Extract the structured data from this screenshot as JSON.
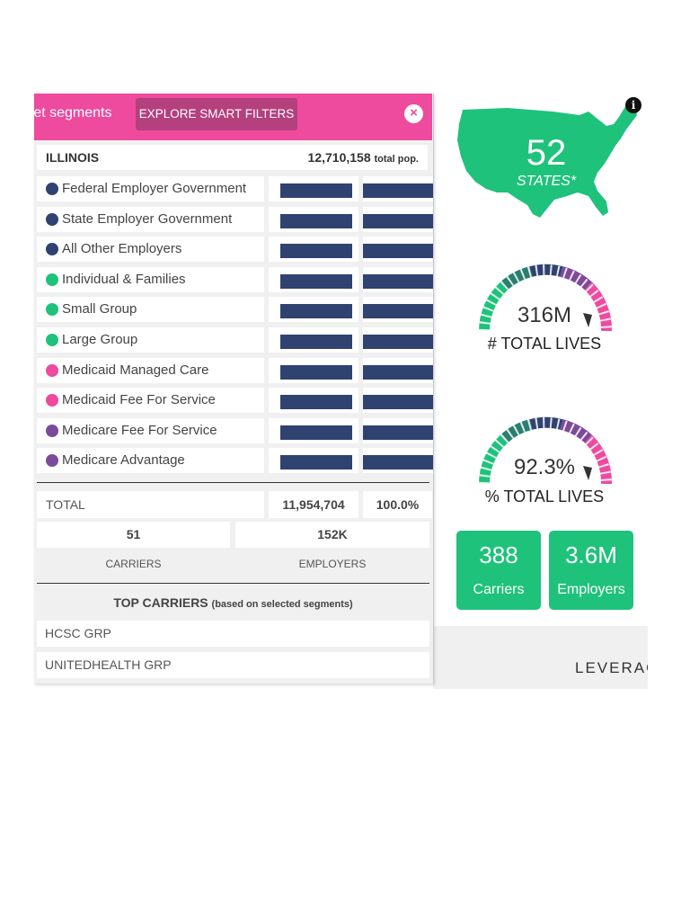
{
  "popup": {
    "title": "rket segments",
    "smart_filters_label": "EXPLORE SMART FILTERS",
    "close_label": "×",
    "state": {
      "name": "ILLINOIS",
      "population": "12,710,158",
      "population_suffix": "total pop."
    },
    "segments": [
      {
        "label": "Federal Employer Government",
        "color": "#304270"
      },
      {
        "label": "State Employer Government",
        "color": "#304270"
      },
      {
        "label": "All Other Employers",
        "color": "#304270"
      },
      {
        "label": "Individual & Families",
        "color": "#1fc27b"
      },
      {
        "label": "Small Group",
        "color": "#1fc27b"
      },
      {
        "label": "Large Group",
        "color": "#1fc27b"
      },
      {
        "label": "Medicaid Managed Care",
        "color": "#ee4a9e"
      },
      {
        "label": "Medicaid Fee For Service",
        "color": "#ee4a9e"
      },
      {
        "label": "Medicare Fee For Service",
        "color": "#7d4a9a"
      },
      {
        "label": "Medicare Advantage",
        "color": "#7d4a9a"
      }
    ],
    "total": {
      "label": "TOTAL",
      "value": "11,954,704",
      "percent": "100.0%"
    },
    "carriers": {
      "value": "51",
      "label": "CARRIERS"
    },
    "employers": {
      "value": "152K",
      "label": "EMPLOYERS"
    },
    "top_carriers": {
      "title": "TOP CARRIERS",
      "subtitle": "(based on selected segments)",
      "items": [
        "HCSC GRP",
        "UNITEDHEALTH GRP"
      ]
    }
  },
  "dashboard": {
    "states": {
      "value": "52",
      "label": "STATES*"
    },
    "info_icon": "i",
    "total_lives": {
      "value": "316M",
      "label": "# TOTAL LIVES"
    },
    "pct_total_lives": {
      "value": "92.3%",
      "label": "% TOTAL LIVES"
    },
    "kpi_carriers": {
      "value": "388",
      "label": "Carriers"
    },
    "kpi_employers": {
      "value": "3.6M",
      "label": "Employers"
    },
    "logo": "LEVERAGE",
    "colors": {
      "green": "#1fc27b",
      "teal": "#2a7f6f",
      "navy": "#304270",
      "purple": "#7d4a9a",
      "pink": "#ee4a9e"
    }
  }
}
